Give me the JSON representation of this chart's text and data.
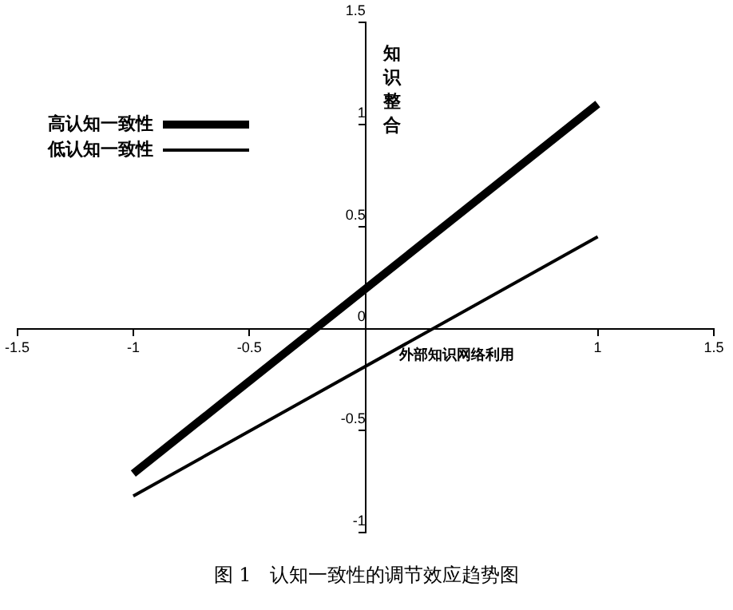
{
  "chart_data": {
    "type": "line",
    "title": "图 1　认知一致性的调节效应趋势图",
    "xlabel": "外部知识网络利用",
    "ylabel": "知识整合",
    "xlim": [
      -1.5,
      1.5
    ],
    "xticks": [
      -1.5,
      -1,
      -0.5,
      1,
      1.5
    ],
    "ylim": [
      -1,
      1.5
    ],
    "yticks": [
      -1,
      -0.5,
      0,
      0.5,
      1,
      1.5
    ],
    "grid": false,
    "x": [
      -1,
      1
    ],
    "legend": "top left",
    "marker": "none",
    "line_style": "solid",
    "series": [
      {
        "name": "高认知一致性",
        "color": "#000000",
        "values": [
          -0.71,
          1.1
        ]
      },
      {
        "name": "低认知一致性",
        "color": "#000000",
        "values": [
          -0.82,
          0.45
        ]
      }
    ]
  }
}
